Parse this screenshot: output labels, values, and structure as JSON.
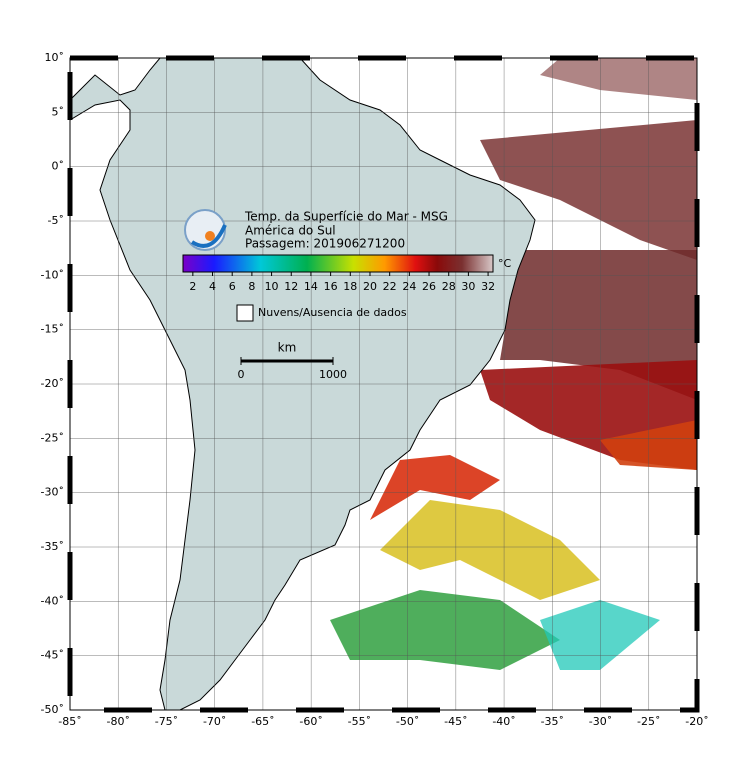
{
  "map": {
    "lonlim": [
      -85,
      -20
    ],
    "latlim": [
      -50,
      10
    ],
    "grid": true,
    "lonticks": [
      {
        "value": -85,
        "label": "-85˚"
      },
      {
        "value": -80,
        "label": "-80˚"
      },
      {
        "value": -75,
        "label": "-75˚"
      },
      {
        "value": -70,
        "label": "-70˚"
      },
      {
        "value": -65,
        "label": "-65˚"
      },
      {
        "value": -60,
        "label": "-60˚"
      },
      {
        "value": -55,
        "label": "-55˚"
      },
      {
        "value": -50,
        "label": "-50˚"
      },
      {
        "value": -45,
        "label": "-45˚"
      },
      {
        "value": -40,
        "label": "-40˚"
      },
      {
        "value": -35,
        "label": "-35˚"
      },
      {
        "value": -30,
        "label": "-30˚"
      },
      {
        "value": -25,
        "label": "-25˚"
      },
      {
        "value": -20,
        "label": "-20˚"
      }
    ],
    "latticks": [
      {
        "value": 10,
        "label": "10˚"
      },
      {
        "value": 5,
        "label": "5˚"
      },
      {
        "value": 0,
        "label": "0˚"
      },
      {
        "value": -5,
        "label": "-5˚"
      },
      {
        "value": -10,
        "label": "-10˚"
      },
      {
        "value": -15,
        "label": "-15˚"
      },
      {
        "value": -20,
        "label": "-20˚"
      },
      {
        "value": -25,
        "label": "-25˚"
      },
      {
        "value": -30,
        "label": "-30˚"
      },
      {
        "value": -35,
        "label": "-35˚"
      },
      {
        "value": -40,
        "label": "-40˚"
      },
      {
        "value": -45,
        "label": "-45˚"
      },
      {
        "value": -50,
        "label": "-50˚"
      }
    ]
  },
  "title_lines": [
    "Temp. da Superfície do Mar - MSG",
    "América do Sul",
    "Passagem: 201906271200"
  ],
  "colorbar": {
    "unit": "°C",
    "range": [
      1,
      32.5
    ],
    "ticks": [
      2,
      4,
      6,
      8,
      10,
      12,
      14,
      16,
      18,
      20,
      22,
      24,
      26,
      28,
      30,
      32
    ]
  },
  "legend": "Nuvens/Ausencia de dados",
  "scale_bar": {
    "unit": "km",
    "ticks": [
      0,
      1000
    ]
  }
}
